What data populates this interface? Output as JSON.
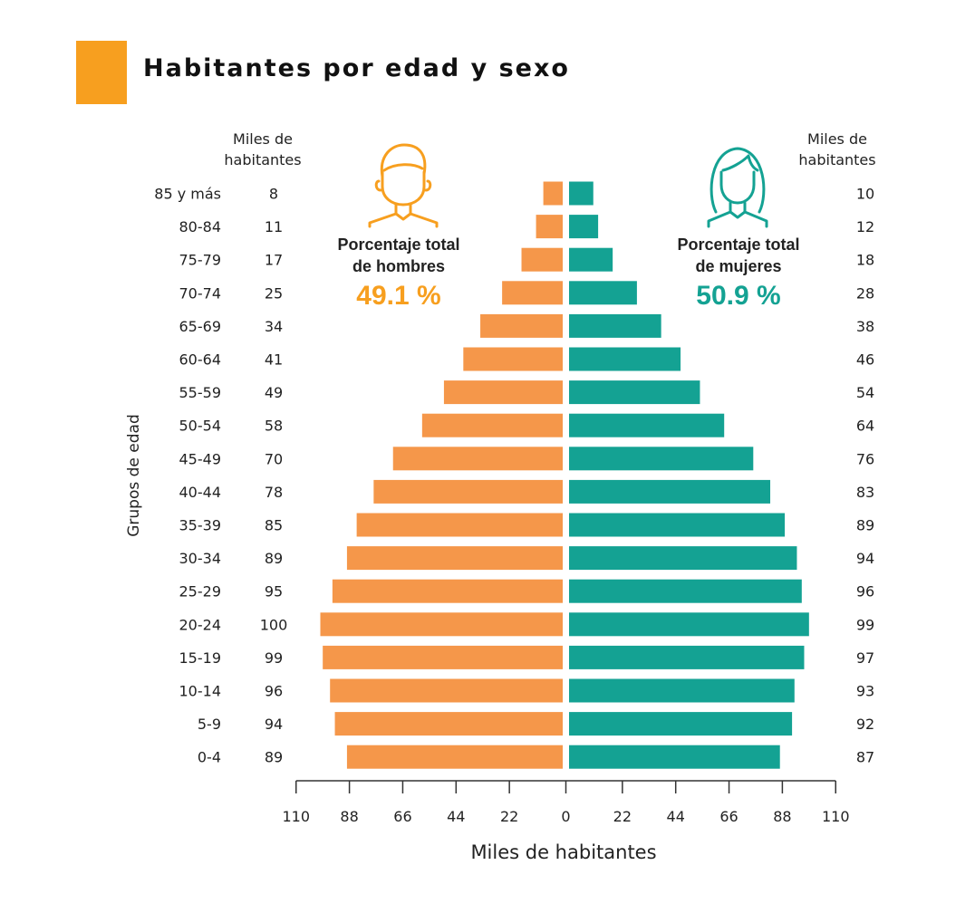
{
  "header": {
    "title": "Habitantes por edad y sexo",
    "accent_color": "#F79F1F"
  },
  "chart_data": {
    "type": "bar",
    "orientation": "horizontal",
    "title": "Habitantes por edad y sexo",
    "xlabel": "Miles de habitantes",
    "ylabel": "Grupos de edad",
    "xlim": [
      -110,
      110
    ],
    "xticks": [
      110,
      88,
      66,
      44,
      22,
      0,
      22,
      44,
      66,
      88,
      110
    ],
    "categories": [
      "85 y más",
      "80-84",
      "75-79",
      "70-74",
      "65-69",
      "60-64",
      "55-59",
      "50-54",
      "45-49",
      "40-44",
      "35-39",
      "30-34",
      "25-29",
      "20-24",
      "15-19",
      "10-14",
      "5-9",
      "0-4"
    ],
    "series": [
      {
        "side": "left",
        "color": "#F5974A",
        "values": [
          8,
          11,
          17,
          25,
          34,
          41,
          49,
          58,
          70,
          78,
          85,
          89,
          95,
          100,
          99,
          96,
          94,
          89
        ]
      },
      {
        "side": "right",
        "color": "#14A293",
        "values": [
          10,
          12,
          18,
          28,
          38,
          46,
          54,
          64,
          76,
          83,
          89,
          94,
          96,
          99,
          97,
          93,
          92,
          87
        ]
      }
    ],
    "column_header_left": [
      "Miles de",
      "habitantes"
    ],
    "column_header_right": [
      "Miles de",
      "habitantes"
    ],
    "annotations": {
      "men_label": [
        "Porcentaje total",
        "de hombres"
      ],
      "men_value": "49.1 %",
      "men_color": "#F79F1F",
      "women_label": [
        "Porcentaje total",
        "de mujeres"
      ],
      "women_value": "50.9 %",
      "women_color": "#14A293",
      "men_icon": "man-icon",
      "women_icon": "woman-icon"
    },
    "grid": false
  }
}
